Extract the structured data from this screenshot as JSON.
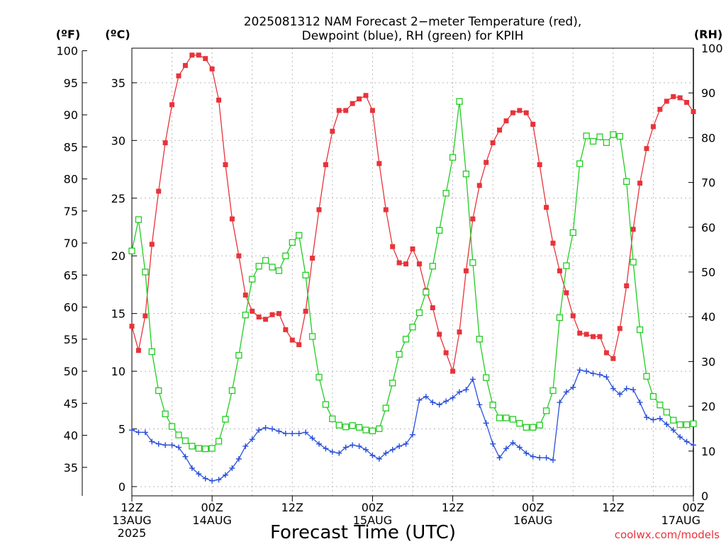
{
  "chart_data": {
    "type": "line",
    "title_line1": "2025081312 NAM Forecast 2−meter Temperature (red),",
    "title_line2": "Dewpoint (blue), RH (green) for KPIH",
    "xlabel": "Forecast Time (UTC)",
    "credit": "coolwx.com/models",
    "axis_labels": {
      "fahrenheit": "(ºF)",
      "celsius": "(ºC)",
      "rh": "(RH)"
    },
    "fahrenheit_ticks": [
      "35",
      "40",
      "45",
      "50",
      "55",
      "60",
      "65",
      "70",
      "75",
      "80",
      "85",
      "90",
      "95",
      "100"
    ],
    "celsius_ticks": [
      "0",
      "5",
      "10",
      "15",
      "20",
      "25",
      "30",
      "35"
    ],
    "rh_ticks": [
      "0",
      "10",
      "20",
      "30",
      "40",
      "50",
      "60",
      "70",
      "80",
      "90",
      "100"
    ],
    "x_ticks": [
      {
        "lines": [
          "12Z",
          "13AUG",
          "2025"
        ]
      },
      {
        "lines": [
          "00Z",
          "14AUG"
        ]
      },
      {
        "lines": [
          "12Z"
        ]
      },
      {
        "lines": [
          "00Z",
          "15AUG"
        ]
      },
      {
        "lines": [
          "12Z"
        ]
      },
      {
        "lines": [
          "00Z",
          "16AUG"
        ]
      },
      {
        "lines": [
          "12Z"
        ]
      },
      {
        "lines": [
          "00Z",
          "17AUG"
        ]
      }
    ],
    "x_unit": "forecast hour (from 12Z 13AUG 2025)",
    "x_range": [
      0,
      84
    ],
    "y_range_celsius": [
      -0.8,
      38
    ],
    "y_range_rh": [
      0,
      100
    ],
    "grid": true,
    "series": [
      {
        "name": "Temperature",
        "color": "#e8333a",
        "marker": "filled-square",
        "axis": "celsius",
        "x": [
          0,
          1,
          2,
          3,
          4,
          5,
          6,
          7,
          8,
          9,
          10,
          11,
          12,
          13,
          14,
          15,
          16,
          17,
          18,
          19,
          20,
          21,
          22,
          23,
          24,
          25,
          26,
          27,
          28,
          29,
          30,
          31,
          32,
          33,
          34,
          35,
          36,
          37,
          38,
          39,
          40,
          41,
          42,
          43,
          44,
          45,
          46,
          47,
          48,
          49,
          50,
          51,
          52,
          53,
          54,
          55,
          56,
          57,
          58,
          59,
          60,
          61,
          62,
          63,
          64,
          65,
          66,
          67,
          68,
          69,
          70,
          71,
          72,
          73,
          74,
          75,
          76,
          77,
          78,
          79,
          80,
          81,
          82,
          83,
          84
        ],
        "values": [
          13.9,
          11.8,
          14.8,
          21.0,
          25.6,
          29.8,
          33.1,
          35.6,
          36.5,
          37.4,
          37.4,
          37.1,
          36.2,
          33.5,
          27.9,
          23.2,
          20.0,
          16.6,
          15.2,
          14.7,
          14.5,
          14.9,
          15.0,
          13.6,
          12.7,
          12.3,
          15.2,
          19.8,
          24.0,
          27.9,
          30.8,
          32.6,
          32.6,
          33.2,
          33.6,
          33.9,
          32.6,
          28.0,
          24.0,
          20.8,
          19.4,
          19.3,
          20.6,
          19.3,
          17.0,
          15.5,
          13.2,
          11.6,
          10.0,
          13.4,
          18.7,
          23.2,
          26.1,
          28.1,
          29.8,
          30.9,
          31.7,
          32.4,
          32.6,
          32.4,
          31.4,
          27.9,
          24.2,
          21.1,
          18.7,
          16.8,
          14.8,
          13.3,
          13.2,
          13.0,
          13.0,
          11.6,
          11.1,
          13.7,
          17.4,
          22.3,
          26.3,
          29.3,
          31.2,
          32.7,
          33.4,
          33.8,
          33.7,
          33.3,
          32.5
        ]
      },
      {
        "name": "Dewpoint",
        "color": "#2a4fd8",
        "marker": "plus",
        "axis": "celsius",
        "x": [
          0,
          1,
          2,
          3,
          4,
          5,
          6,
          7,
          8,
          9,
          10,
          11,
          12,
          13,
          14,
          15,
          16,
          17,
          18,
          19,
          20,
          21,
          22,
          23,
          24,
          25,
          26,
          27,
          28,
          29,
          30,
          31,
          32,
          33,
          34,
          35,
          36,
          37,
          38,
          39,
          40,
          41,
          42,
          43,
          44,
          45,
          46,
          47,
          48,
          49,
          50,
          51,
          52,
          53,
          54,
          55,
          56,
          57,
          58,
          59,
          60,
          61,
          62,
          63,
          64,
          65,
          66,
          67,
          68,
          69,
          70,
          71,
          72,
          73,
          74,
          75,
          76,
          77,
          78,
          79,
          80,
          81,
          82,
          83,
          84
        ],
        "values": [
          4.9,
          4.7,
          4.7,
          3.9,
          3.7,
          3.6,
          3.6,
          3.4,
          2.6,
          1.6,
          1.1,
          0.7,
          0.5,
          0.6,
          1.0,
          1.6,
          2.4,
          3.5,
          4.1,
          4.9,
          5.1,
          5.0,
          4.8,
          4.6,
          4.6,
          4.6,
          4.7,
          4.2,
          3.7,
          3.3,
          3.0,
          2.9,
          3.4,
          3.6,
          3.5,
          3.2,
          2.7,
          2.4,
          2.9,
          3.2,
          3.5,
          3.7,
          4.5,
          7.5,
          7.8,
          7.3,
          7.1,
          7.4,
          7.7,
          8.2,
          8.4,
          9.3,
          7.1,
          5.5,
          3.7,
          2.5,
          3.3,
          3.8,
          3.4,
          2.9,
          2.6,
          2.5,
          2.5,
          2.3,
          7.3,
          8.2,
          8.6,
          10.1,
          10.0,
          9.8,
          9.7,
          9.5,
          8.5,
          8.0,
          8.5,
          8.4,
          7.3,
          6.0,
          5.8,
          5.9,
          5.4,
          4.9,
          4.3,
          3.9,
          3.6
        ]
      },
      {
        "name": "RH",
        "color": "#22cc22",
        "marker": "open-square",
        "axis": "rh",
        "x": [
          0,
          1,
          2,
          3,
          4,
          5,
          6,
          7,
          8,
          9,
          10,
          11,
          12,
          13,
          14,
          15,
          16,
          17,
          18,
          19,
          20,
          21,
          22,
          23,
          24,
          25,
          26,
          27,
          28,
          29,
          30,
          31,
          32,
          33,
          34,
          35,
          36,
          37,
          38,
          39,
          40,
          41,
          42,
          43,
          44,
          45,
          46,
          47,
          48,
          49,
          50,
          51,
          52,
          53,
          54,
          55,
          56,
          57,
          58,
          59,
          60,
          61,
          62,
          63,
          64,
          65,
          66,
          67,
          68,
          69,
          70,
          71,
          72,
          73,
          74,
          75,
          76,
          77,
          78,
          79,
          80,
          81,
          82,
          83,
          84
        ],
        "values": [
          54.7,
          61.7,
          50.0,
          32.2,
          23.5,
          18.3,
          15.5,
          13.6,
          12.3,
          11.1,
          10.6,
          10.5,
          10.6,
          12.2,
          17.1,
          23.5,
          31.4,
          40.4,
          48.4,
          51.3,
          52.6,
          51.1,
          50.3,
          53.6,
          56.6,
          58.2,
          49.3,
          35.6,
          26.5,
          20.4,
          17.2,
          15.8,
          15.4,
          15.7,
          15.3,
          14.7,
          14.5,
          15.0,
          19.6,
          25.2,
          31.6,
          35.0,
          37.7,
          40.9,
          45.5,
          51.3,
          59.3,
          67.6,
          75.6,
          88.1,
          71.9,
          52.1,
          35.0,
          26.4,
          20.3,
          17.4,
          17.4,
          17.1,
          16.2,
          15.3,
          15.3,
          15.8,
          19.0,
          23.5,
          39.8,
          51.4,
          58.8,
          74.2,
          80.4,
          79.2,
          80.2,
          78.9,
          80.7,
          80.3,
          70.2,
          52.2,
          37.1,
          26.7,
          22.2,
          20.3,
          18.7,
          16.9,
          15.9,
          15.9,
          16.1
        ]
      }
    ]
  }
}
